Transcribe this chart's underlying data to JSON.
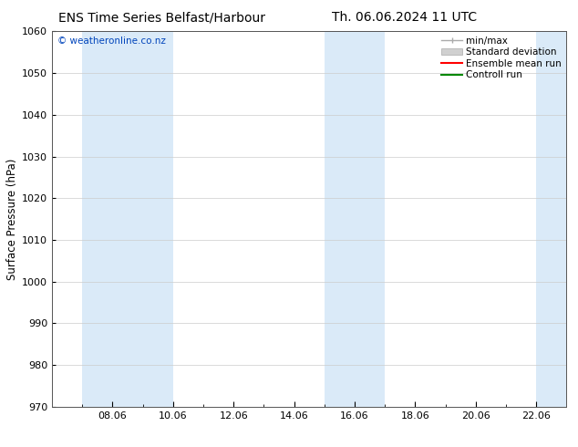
{
  "title_left": "ENS Time Series Belfast/Harbour",
  "title_right": "Th. 06.06.2024 11 UTC",
  "ylabel": "Surface Pressure (hPa)",
  "ylim": [
    970,
    1060
  ],
  "yticks": [
    970,
    980,
    990,
    1000,
    1010,
    1020,
    1030,
    1040,
    1050,
    1060
  ],
  "x_min": 6.0,
  "x_max": 23.0,
  "xtick_positions": [
    8,
    10,
    12,
    14,
    16,
    18,
    20,
    22
  ],
  "xtick_labels": [
    "08.06",
    "10.06",
    "12.06",
    "14.06",
    "16.06",
    "18.06",
    "20.06",
    "22.06"
  ],
  "minor_xtick_positions": [
    7,
    9,
    11,
    13,
    15,
    17,
    19,
    21
  ],
  "shaded_bands": [
    {
      "x_start": 7.0,
      "x_end": 10.0
    },
    {
      "x_start": 15.0,
      "x_end": 17.0
    },
    {
      "x_start": 22.0,
      "x_end": 23.0
    }
  ],
  "shaded_color": "#daeaf8",
  "watermark": "© weatheronline.co.nz",
  "watermark_color": "#0044bb",
  "bg_color": "#ffffff",
  "plot_bg_color": "#ffffff",
  "grid_color": "#cccccc",
  "legend_items": [
    {
      "label": "min/max",
      "color": "#aaaaaa"
    },
    {
      "label": "Standard deviation",
      "color": "#c0c0c0"
    },
    {
      "label": "Ensemble mean run",
      "color": "#ff0000"
    },
    {
      "label": "Controll run",
      "color": "#00aa00"
    }
  ],
  "title_fontsize": 10,
  "axis_label_fontsize": 8.5,
  "tick_fontsize": 8,
  "legend_fontsize": 7.5,
  "watermark_fontsize": 7.5
}
